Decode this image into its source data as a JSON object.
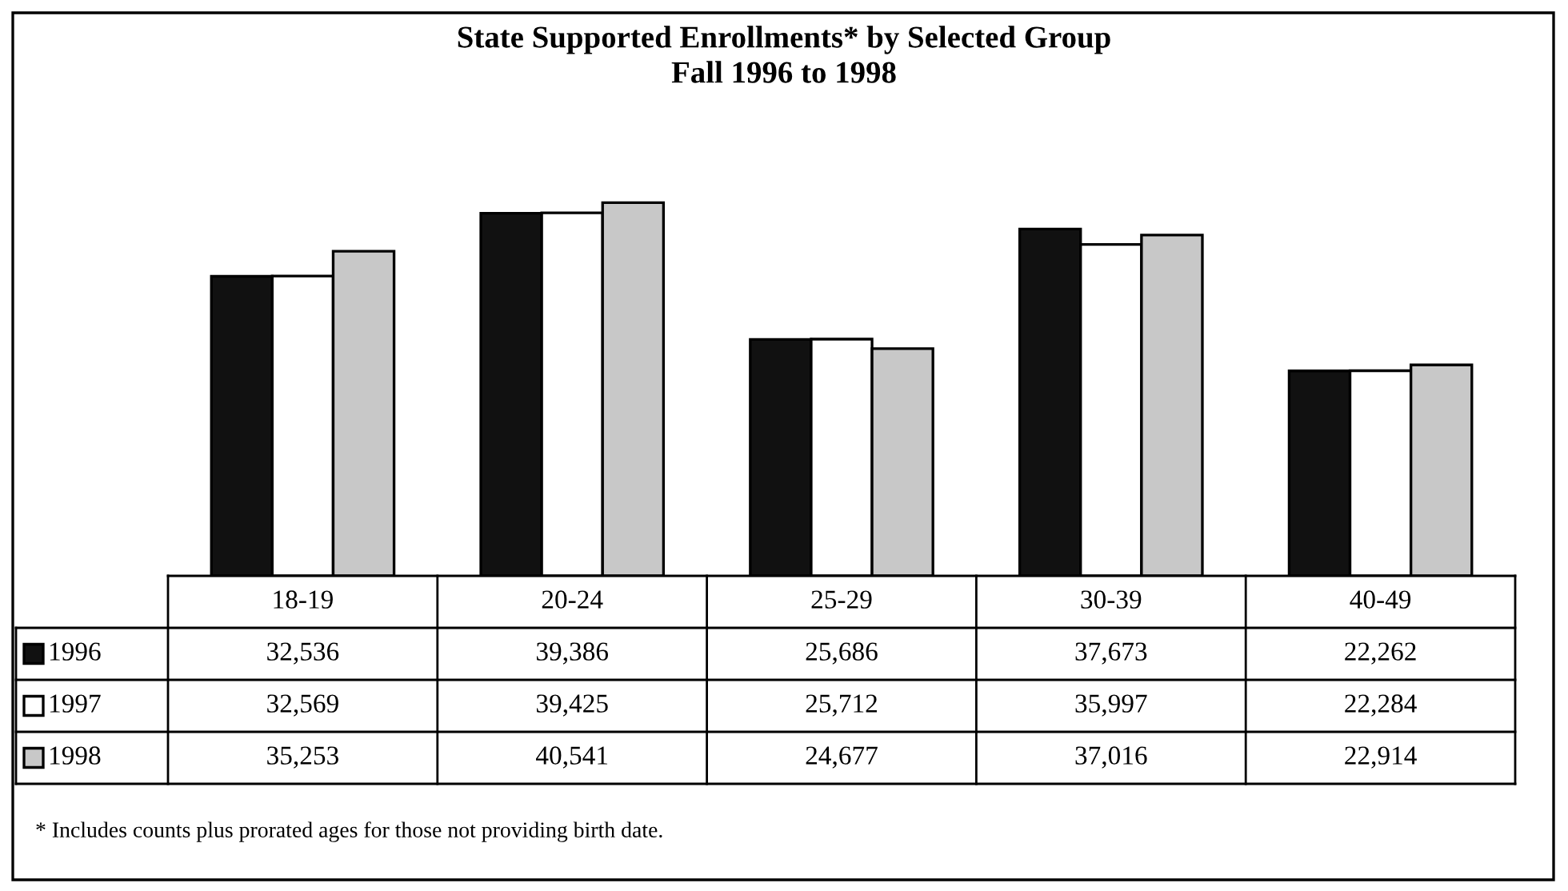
{
  "chart_data": {
    "type": "bar",
    "title": "State Supported Enrollments* by Selected Group",
    "subtitle": "Fall 1996 to 1998",
    "categories": [
      "18-19",
      "20-24",
      "25-29",
      "30-39",
      "40-49"
    ],
    "series": [
      {
        "name": "1996",
        "color": "#111111",
        "values": [
          32536,
          39386,
          25686,
          37673,
          22262
        ],
        "value_labels": [
          "32,536",
          "39,386",
          "25,686",
          "37,673",
          "22,262"
        ]
      },
      {
        "name": "1997",
        "color": "#ffffff",
        "values": [
          32569,
          39425,
          25712,
          35997,
          22284
        ],
        "value_labels": [
          "32,569",
          "39,425",
          "25,712",
          "35,997",
          "22,284"
        ]
      },
      {
        "name": "1998",
        "color": "#c8c8c8",
        "values": [
          35253,
          40541,
          24677,
          37016,
          22914
        ],
        "value_labels": [
          "35,253",
          "40,541",
          "24,677",
          "37,016",
          "22,914"
        ]
      }
    ],
    "legend": "bottom",
    "annotations": [
      "* Includes counts plus prorated ages for those not providing birth date."
    ]
  }
}
